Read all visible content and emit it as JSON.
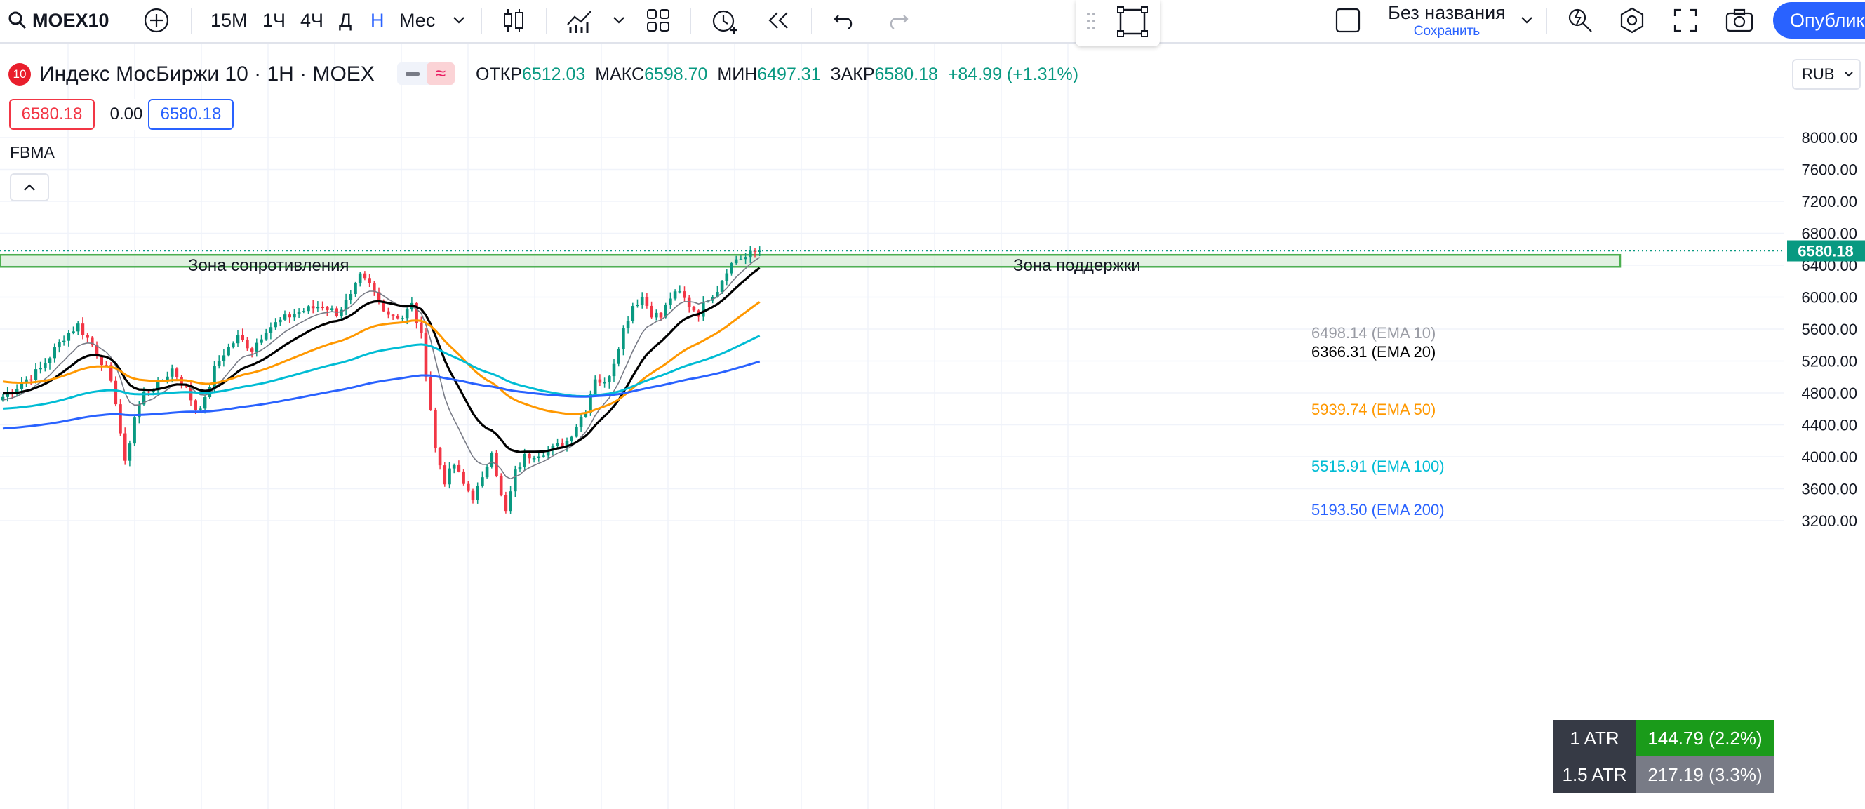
{
  "toolbar": {
    "symbol": "MOEX10",
    "resolutions": [
      "15M",
      "1Ч",
      "4Ч",
      "Д",
      "Н",
      "Мес"
    ],
    "active_resolution": "Н",
    "layout_name": "Без названия",
    "layout_save": "Сохранить",
    "publish": "Опубликовать"
  },
  "legend": {
    "badge": "10",
    "title": "Индекс МосБиржи 10 · 1Н · MOEX",
    "ohlc": {
      "open_label": "ОТКР",
      "open": "6512.03",
      "high_label": "МАКС",
      "high": "6598.70",
      "low_label": "МИН",
      "low": "6497.31",
      "close_label": "ЗАКР",
      "close": "6580.18",
      "change": "+84.99 (+1.31%)"
    },
    "sell_price": "6580.18",
    "spread": "0.00",
    "buy_price": "6580.18",
    "indicator": "FBMA"
  },
  "currency": "RUB",
  "colors": {
    "up": "#089981",
    "down": "#f23645",
    "accent": "#2962ff",
    "ema10": "#787b86",
    "ema20": "#000000",
    "ema50": "#ff9800",
    "ema100": "#00bcd4",
    "ema200": "#2962ff",
    "zone_fill": "#c8e6c9",
    "zone_border": "#4caf50"
  },
  "price_axis": {
    "ticks": [
      "8000.00",
      "7600.00",
      "7200.00",
      "6800.00",
      "6400.00",
      "6000.00",
      "5600.00",
      "5200.00",
      "4800.00",
      "4400.00",
      "4000.00",
      "3600.00",
      "3200.00"
    ],
    "last_price": "6580.18"
  },
  "zones": {
    "resistance": "Зона сопротивления",
    "support": "Зона поддержки"
  },
  "ema_labels": [
    {
      "text": "6498.14 (EMA 10)",
      "value": 6498.14,
      "color": "#787b86"
    },
    {
      "text": "6366.31 (EMA 20)",
      "value": 6366.31,
      "color": "#000000"
    },
    {
      "text": "5939.74 (EMA 50)",
      "value": 5939.74,
      "color": "#ff9800"
    },
    {
      "text": "5515.91 (EMA 100)",
      "value": 5515.91,
      "color": "#00bcd4"
    },
    {
      "text": "5193.50 (EMA 200)",
      "value": 5193.5,
      "color": "#2962ff"
    }
  ],
  "atr": [
    {
      "label": "1 ATR",
      "value": "144.79 (2.2%)"
    },
    {
      "label": "1.5 ATR",
      "value": "217.19 (3.3%)"
    }
  ],
  "chart_data": {
    "type": "candlestick",
    "interval": "1 week",
    "y_axis_ticks": [
      8000,
      7600,
      7200,
      6800,
      6400,
      6000,
      5600,
      5200,
      4800,
      4400,
      4000,
      3600,
      3200
    ],
    "last_close": 6580.18,
    "zone_range": [
      6380,
      6530
    ],
    "anchors": [
      [
        0,
        4750
      ],
      [
        8,
        5100
      ],
      [
        13,
        5500
      ],
      [
        16,
        5650
      ],
      [
        19,
        5400
      ],
      [
        22,
        5100
      ],
      [
        24,
        4700
      ],
      [
        26,
        3900
      ],
      [
        28,
        4500
      ],
      [
        30,
        4800
      ],
      [
        33,
        4900
      ],
      [
        36,
        5100
      ],
      [
        39,
        4850
      ],
      [
        41,
        4600
      ],
      [
        43,
        4700
      ],
      [
        45,
        5100
      ],
      [
        47,
        5300
      ],
      [
        50,
        5500
      ],
      [
        53,
        5350
      ],
      [
        56,
        5600
      ],
      [
        59,
        5700
      ],
      [
        62,
        5800
      ],
      [
        65,
        5850
      ],
      [
        68,
        5900
      ],
      [
        71,
        5800
      ],
      [
        74,
        6000
      ],
      [
        76,
        6250
      ],
      [
        78,
        6150
      ],
      [
        80,
        5950
      ],
      [
        82,
        5800
      ],
      [
        85,
        5750
      ],
      [
        87,
        5900
      ],
      [
        89,
        5500
      ],
      [
        91,
        4600
      ],
      [
        92,
        4100
      ],
      [
        94,
        3700
      ],
      [
        96,
        3900
      ],
      [
        98,
        3650
      ],
      [
        100,
        3500
      ],
      [
        102,
        3700
      ],
      [
        104,
        4100
      ],
      [
        106,
        3500
      ],
      [
        107,
        3300
      ],
      [
        109,
        3800
      ],
      [
        111,
        4000
      ],
      [
        114,
        4050
      ],
      [
        117,
        4100
      ],
      [
        120,
        4200
      ],
      [
        122,
        4400
      ],
      [
        124,
        4600
      ],
      [
        126,
        5000
      ],
      [
        128,
        4900
      ],
      [
        130,
        5200
      ],
      [
        132,
        5600
      ],
      [
        134,
        5900
      ],
      [
        136,
        6000
      ],
      [
        138,
        5800
      ],
      [
        140,
        5750
      ],
      [
        142,
        6000
      ],
      [
        144,
        6050
      ],
      [
        146,
        5900
      ],
      [
        148,
        5800
      ],
      [
        150,
        6000
      ],
      [
        152,
        6100
      ],
      [
        154,
        6350
      ],
      [
        156,
        6480
      ],
      [
        158,
        6500
      ],
      [
        160,
        6570
      ],
      [
        161,
        6580
      ]
    ],
    "ema_end_values": {
      "EMA 10": 6498.14,
      "EMA 20": 6366.31,
      "EMA 50": 5939.74,
      "EMA 100": 5515.91,
      "EMA 200": 5193.5
    }
  }
}
